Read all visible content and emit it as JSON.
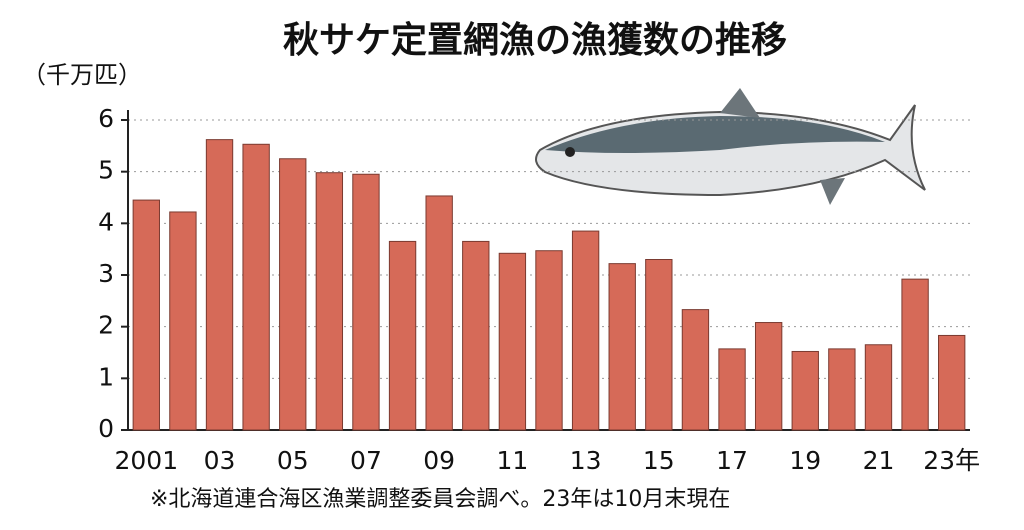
{
  "chart_data": {
    "type": "bar",
    "title": "秋サケ定置網漁の漁獲数の推移",
    "y_label": "（千万匹）",
    "note": "※北海道連合海区漁業調整委員会調べ。23年は10月末現在",
    "categories": [
      "2001",
      null,
      "03",
      null,
      "05",
      null,
      "07",
      null,
      "09",
      null,
      "11",
      null,
      "13",
      null,
      "15",
      null,
      "17",
      null,
      "19",
      null,
      "21",
      null,
      "23年"
    ],
    "values": [
      4.45,
      4.22,
      5.62,
      5.53,
      5.25,
      4.98,
      4.95,
      3.65,
      4.53,
      3.65,
      3.42,
      3.47,
      3.85,
      3.22,
      3.3,
      2.33,
      1.57,
      2.08,
      1.52,
      1.57,
      1.65,
      2.92,
      1.83
    ],
    "color": "#d66a58",
    "ylim": [
      0,
      6
    ],
    "yticks": [
      0,
      1,
      2,
      3,
      4,
      5,
      6
    ],
    "grid": true
  }
}
